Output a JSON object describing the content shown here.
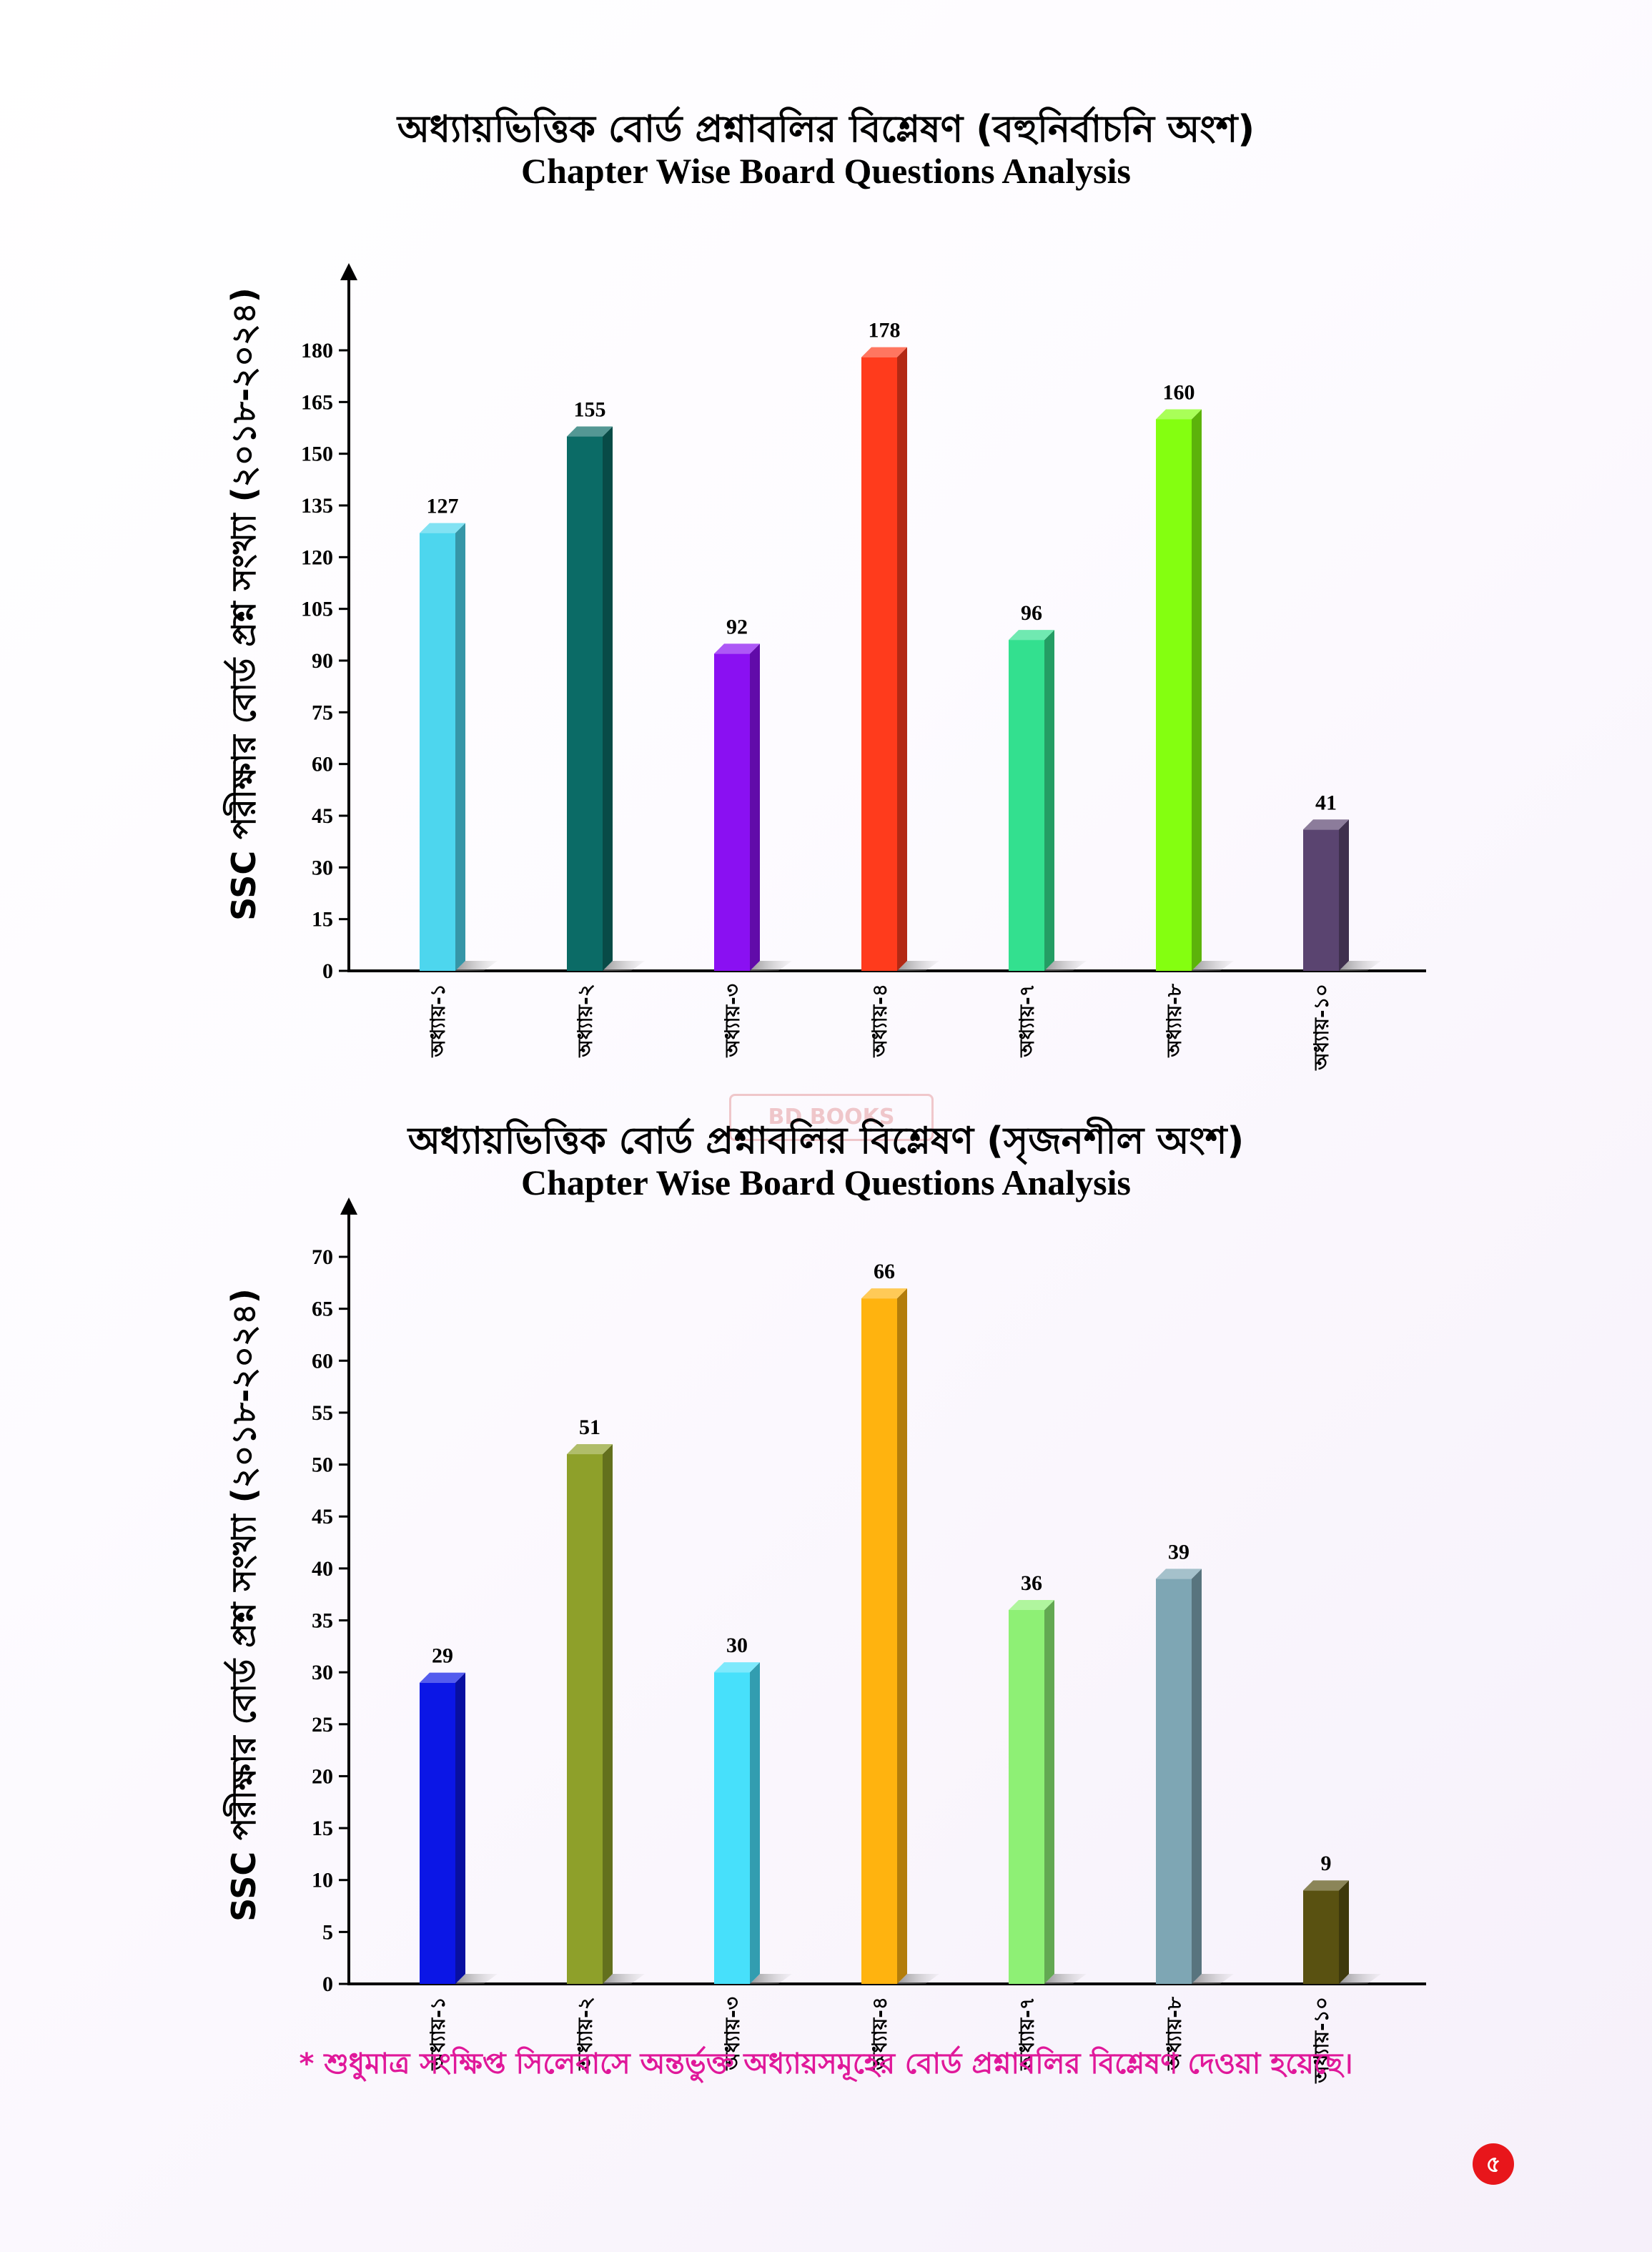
{
  "chart_data": [
    {
      "type": "bar",
      "title": "অধ্যায়ভিত্তিক বোর্ড প্রশ্নাবলির বিশ্লেষণ (বহুনির্বাচনি অংশ)",
      "subtitle": "Chapter Wise Board Questions Analysis",
      "ylabel": "SSC পরীক্ষার বোর্ড প্রশ্ন সংখ্যা (২০১৮-২০২৪)",
      "xlabel": "",
      "categories": [
        "অধ্যায়-১",
        "অধ্যায়-২",
        "অধ্যায়-৩",
        "অধ্যায়-৪",
        "অধ্যায়-৭",
        "অধ্যায়-৮",
        "অধ্যায়-১০"
      ],
      "values": [
        127,
        155,
        92,
        178,
        96,
        160,
        41
      ],
      "colors": [
        "#4dd6ee",
        "#0b6b66",
        "#8a10f2",
        "#ff3b1c",
        "#33e08f",
        "#84ff10",
        "#5a4470"
      ],
      "yticks": [
        0,
        15,
        30,
        45,
        60,
        75,
        90,
        105,
        120,
        135,
        150,
        165,
        180
      ],
      "ylim": [
        0,
        180
      ],
      "grid": false,
      "legend": "none"
    },
    {
      "type": "bar",
      "title": "অধ্যায়ভিত্তিক বোর্ড প্রশ্নাবলির বিশ্লেষণ (সৃজনশীল অংশ)",
      "subtitle": "Chapter Wise Board Questions Analysis",
      "ylabel": "SSC পরীক্ষার বোর্ড প্রশ্ন সংখ্যা (২০১৮-২০২৪)",
      "xlabel": "",
      "categories": [
        "অধ্যায়-১",
        "অধ্যায়-২",
        "অধ্যায়-৩",
        "অধ্যায়-৪",
        "অধ্যায়-৭",
        "অধ্যায়-৮",
        "অধ্যায়-১০"
      ],
      "values": [
        29,
        51,
        30,
        66,
        36,
        39,
        9
      ],
      "colors": [
        "#0b16e6",
        "#8ea02a",
        "#47e0fb",
        "#ffb30f",
        "#8ef075",
        "#7ea6b4",
        "#595111"
      ],
      "yticks": [
        0,
        5,
        10,
        15,
        20,
        25,
        30,
        35,
        40,
        45,
        50,
        55,
        60,
        65,
        70
      ],
      "ylim": [
        0,
        70
      ],
      "grid": false,
      "legend": "none"
    }
  ],
  "watermark_text": "BD BOOKS",
  "footnote": "* শুধুমাত্র সংক্ষিপ্ত সিলেবাসে অন্তর্ভুক্ত অধ্যায়সমূহের বোর্ড প্রশ্নাবলির বিশ্লেষণ দেওয়া হয়েছে।",
  "page_number": "৫"
}
